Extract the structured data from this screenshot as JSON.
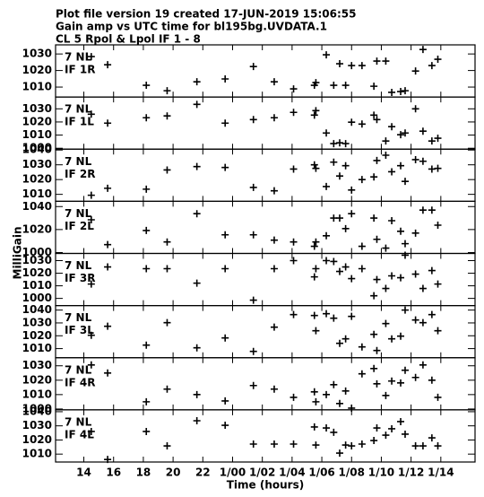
{
  "header": {
    "lines": [
      "Plot file version 19  created 17-JUN-2019 15:06:55",
      "Gain amp vs UTC time for bl195bg.UVDATA.1",
      "CL 5  Rpol & Lpol  IF 1 - 8"
    ]
  },
  "ylabel": "MilliGain",
  "chart_data": [
    {
      "type": "scatter",
      "annotations": [
        "7 NL",
        "IF 1R"
      ],
      "ylim": [
        1004,
        1035.5
      ],
      "yticks": [
        1010,
        1020,
        1030
      ],
      "x": [
        14.5,
        15.6,
        18.2,
        19.6,
        21.6,
        23.5,
        25.4,
        26.8,
        28.1,
        29.5,
        29.6,
        30.3,
        30.8,
        31.2,
        31.6,
        32.0,
        32.7,
        33.5,
        33.7,
        34.3,
        34.7,
        35.3,
        35.6,
        36.3,
        36.8,
        37.4,
        37.8
      ],
      "values": [
        1028.4,
        1023.5,
        1011.1,
        1007.8,
        1013.2,
        1014.9,
        1022.4,
        1013.2,
        1008.9,
        1011.1,
        1012.7,
        1029.5,
        1011.1,
        1024.1,
        1011.1,
        1023,
        1023,
        1010.5,
        1025.7,
        1025.7,
        1006.8,
        1007.3,
        1007.8,
        1019.7,
        1032.7,
        1023,
        1026.8
      ]
    },
    {
      "type": "scatter",
      "annotations": [
        "7 NL",
        "IF 1L"
      ],
      "ylim": [
        999.3,
        1039
      ],
      "yticks": [
        1000,
        1010,
        1020,
        1030
      ],
      "x": [
        14.5,
        15.6,
        18.2,
        19.6,
        21.6,
        23.5,
        25.4,
        26.8,
        28.1,
        29.5,
        29.6,
        30.3,
        30.8,
        31.2,
        31.6,
        32.0,
        32.7,
        33.5,
        33.7,
        34.3,
        34.7,
        35.3,
        35.6,
        36.3,
        36.8,
        37.4,
        37.8
      ],
      "values": [
        1025.9,
        1019.1,
        1023.2,
        1024.6,
        1033.4,
        1019.1,
        1021.8,
        1023.2,
        1027.3,
        1025.2,
        1028.6,
        1011.6,
        1003.5,
        1004.1,
        1003.5,
        1019.8,
        1018.4,
        1025.2,
        1021.8,
        1005.5,
        1016.4,
        1010.3,
        1011.6,
        1030,
        1013,
        1005.5,
        1007.6
      ]
    },
    {
      "type": "scatter",
      "annotations": [
        "7 NL",
        "IF 2R"
      ],
      "ylim": [
        1005.3,
        1040.6
      ],
      "yticks": [
        1010,
        1020,
        1030,
        1040
      ],
      "x": [
        14.5,
        15.6,
        18.2,
        19.6,
        21.6,
        23.5,
        25.4,
        26.8,
        28.1,
        29.5,
        29.6,
        30.3,
        30.8,
        31.2,
        31.6,
        32.0,
        32.7,
        33.5,
        33.7,
        34.3,
        34.7,
        35.3,
        35.6,
        36.3,
        36.8,
        37.4,
        37.8
      ],
      "values": [
        1009.4,
        1014.1,
        1013.5,
        1026.5,
        1028.8,
        1028.2,
        1014.7,
        1012.4,
        1027.1,
        1030,
        1027.6,
        1015.3,
        1031.8,
        1022.4,
        1029.4,
        1012.9,
        1020,
        1021.8,
        1032.9,
        1036.5,
        1025.3,
        1029.4,
        1018.8,
        1033.5,
        1032.4,
        1027.1,
        1027.6
      ]
    },
    {
      "type": "scatter",
      "annotations": [
        "7 NL",
        "IF 2L"
      ],
      "ylim": [
        999.2,
        1044.6
      ],
      "yticks": [
        1000,
        1020,
        1040
      ],
      "x": [
        14.5,
        15.6,
        18.2,
        19.6,
        21.6,
        23.5,
        25.4,
        26.8,
        28.1,
        29.5,
        29.6,
        30.3,
        30.8,
        31.2,
        31.6,
        32.0,
        32.7,
        33.5,
        33.7,
        34.3,
        34.7,
        35.3,
        35.6,
        36.3,
        36.8,
        37.4,
        37.8
      ],
      "values": [
        1028.5,
        1006.9,
        1019.2,
        1009.2,
        1033.8,
        1015.4,
        1015.4,
        1010.8,
        1009.2,
        1005.4,
        1009.2,
        1014.6,
        1030,
        1030,
        1020.8,
        1033.8,
        1005.4,
        1030,
        1011.5,
        1003.8,
        1027.7,
        1018.5,
        1007.7,
        1016.9,
        1036.9,
        1036.9,
        1023.8
      ]
    },
    {
      "type": "scatter",
      "annotations": [
        "7 NL",
        "IF 3R"
      ],
      "ylim": [
        994.3,
        1035.7
      ],
      "yticks": [
        1000,
        1010,
        1020,
        1030
      ],
      "x": [
        14.5,
        15.6,
        18.2,
        19.6,
        21.6,
        23.5,
        25.4,
        26.8,
        28.1,
        29.5,
        29.6,
        30.3,
        30.8,
        31.2,
        31.6,
        32.0,
        32.7,
        33.5,
        33.7,
        34.3,
        34.7,
        35.3,
        35.6,
        36.3,
        36.8,
        37.4,
        37.8
      ],
      "values": [
        1011.4,
        1025,
        1023.6,
        1023.6,
        1012.1,
        1023.6,
        998.6,
        1023.6,
        1030,
        1017.1,
        1023.6,
        1030,
        1029.3,
        1021.4,
        1025,
        1015.7,
        1023.6,
        1002.1,
        1015,
        1007.9,
        1017.9,
        1016.4,
        1034.3,
        1019.3,
        1007.9,
        1022.1,
        1011.4
      ]
    },
    {
      "type": "scatter",
      "annotations": [
        "7 NL",
        "IF 3L"
      ],
      "ylim": [
        1002.9,
        1043.5
      ],
      "yticks": [
        1010,
        1020,
        1030,
        1040
      ],
      "x": [
        14.5,
        15.6,
        18.2,
        19.6,
        21.6,
        23.5,
        25.4,
        26.8,
        28.1,
        29.5,
        29.6,
        30.3,
        30.8,
        31.2,
        31.6,
        32.0,
        32.7,
        33.5,
        33.7,
        34.3,
        34.7,
        35.3,
        35.6,
        36.3,
        36.8,
        37.4,
        37.8
      ],
      "values": [
        1020.4,
        1027.4,
        1012.7,
        1030.2,
        1010.6,
        1018.3,
        1007.8,
        1026.7,
        1036.5,
        1035.8,
        1023.9,
        1037.2,
        1033.7,
        1014.1,
        1017.6,
        1035.1,
        1011.3,
        1021.1,
        1008.5,
        1029.5,
        1017.6,
        1019.7,
        1040,
        1032.3,
        1030.2,
        1036.5,
        1023.9
      ]
    },
    {
      "type": "scatter",
      "annotations": [
        "7 NL",
        "IF 4R"
      ],
      "ylim": [
        999.4,
        1035.6
      ],
      "yticks": [
        1000,
        1010,
        1020,
        1030
      ],
      "x": [
        14.5,
        15.6,
        18.2,
        19.6,
        21.6,
        23.5,
        25.4,
        26.8,
        28.1,
        29.5,
        29.6,
        30.3,
        30.8,
        31.2,
        31.6,
        32.0,
        32.7,
        33.5,
        33.7,
        34.3,
        34.7,
        35.3,
        35.6,
        36.3,
        36.8,
        37.4,
        37.8
      ],
      "values": [
        1030.6,
        1025,
        1005,
        1013.8,
        1010,
        1005.6,
        1016.3,
        1013.8,
        1008.1,
        1011.9,
        1005,
        1010,
        1016.9,
        1003.8,
        1012.5,
        1000.6,
        1024.4,
        1028.1,
        1017.5,
        1009.4,
        1019.4,
        1018.1,
        1026.9,
        1021.9,
        1030.6,
        1020,
        1008.1
      ]
    },
    {
      "type": "scatter",
      "annotations": [
        "7 NL",
        "IF 4L"
      ],
      "ylim": [
        1004.4,
        1041.3
      ],
      "yticks": [
        1010,
        1020,
        1030,
        1040
      ],
      "xlim": [
        12.1,
        40.3
      ],
      "xlabel": "Time (hours)",
      "xticks": [
        14,
        16,
        18,
        20,
        22,
        {
          "value": 24,
          "label": "1/00"
        },
        {
          "value": 26,
          "label": "1/02"
        },
        {
          "value": 28,
          "label": "1/04"
        },
        {
          "value": 30,
          "label": "1/06"
        },
        {
          "value": 32,
          "label": "1/08"
        },
        {
          "value": 34,
          "label": "1/10"
        },
        {
          "value": 36,
          "label": "1/12"
        },
        {
          "value": 38,
          "label": "1/14"
        }
      ],
      "x": [
        14.5,
        15.6,
        18.2,
        19.6,
        21.6,
        23.5,
        25.4,
        26.8,
        28.1,
        29.5,
        29.6,
        30.3,
        30.8,
        31.2,
        31.6,
        32.0,
        32.7,
        33.5,
        33.7,
        34.3,
        34.7,
        35.3,
        35.6,
        36.3,
        36.8,
        37.4,
        37.8
      ],
      "values": [
        1026,
        1006.2,
        1026,
        1015.8,
        1033.6,
        1030.4,
        1017.1,
        1017.1,
        1017.1,
        1029.2,
        1016.4,
        1028.5,
        1025.4,
        1010.7,
        1016.4,
        1015.8,
        1017.1,
        1019.6,
        1028.5,
        1023.4,
        1027.9,
        1033,
        1024.1,
        1015.8,
        1015.8,
        1021.5,
        1015.8
      ]
    }
  ]
}
